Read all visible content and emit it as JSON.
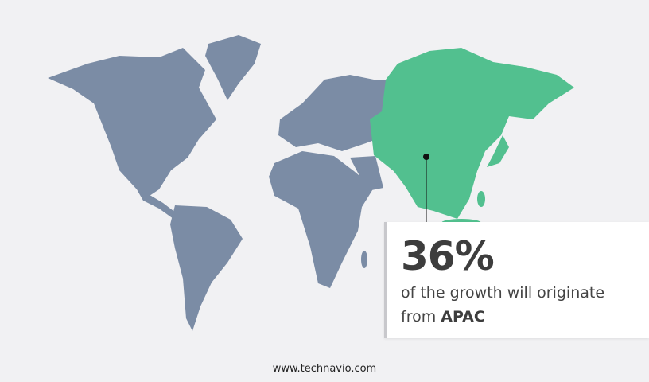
{
  "colors": {
    "background": "#f1f1f3",
    "land": "#7b8ca5",
    "highlight": "#52c08f"
  },
  "highlighted_region": "APAC",
  "callout": {
    "percent": "36%",
    "text": "of the growth will originate",
    "text2": "from ",
    "region": "APAC"
  },
  "footer": "www.technavio.com"
}
